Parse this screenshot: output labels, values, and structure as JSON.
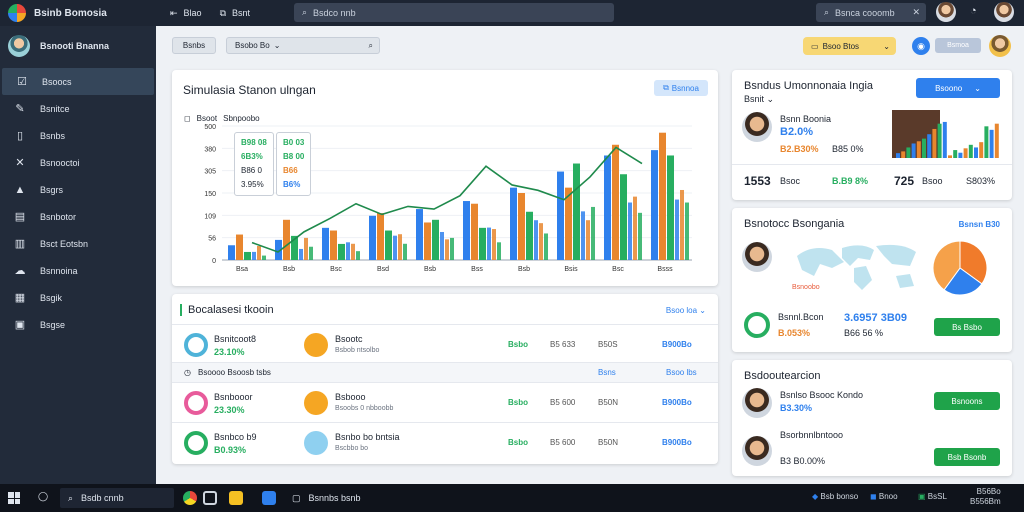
{
  "topbar": {
    "app_title": "Bsinb Bomosia",
    "nav1": "Blao",
    "nav2": "Bsnt",
    "search_placeholder": "Bsdco nnb",
    "search2_placeholder": "Bsnca cooomb"
  },
  "sidebar": {
    "user_name": "Bsnooti Bnanna",
    "items": [
      {
        "label": "Bsoocs",
        "icon": "edit-icon"
      },
      {
        "label": "Bsnitce",
        "icon": "edit-icon"
      },
      {
        "label": "Bsnbs",
        "icon": "document-icon"
      },
      {
        "label": "Bsnooctoi",
        "icon": "tools-icon"
      },
      {
        "label": "Bsgrs",
        "icon": "user-icon"
      },
      {
        "label": "Bsnbotor",
        "icon": "file-icon"
      },
      {
        "label": "Bsct Eotsbn",
        "icon": "file-icon"
      },
      {
        "label": "Bsnnoina",
        "icon": "cloud-icon"
      },
      {
        "label": "Bsgik",
        "icon": "chart-icon"
      },
      {
        "label": "Bsgse",
        "icon": "archive-icon"
      }
    ]
  },
  "header": {
    "crumb": "Bsnbs",
    "filter": "Bsobo Bo",
    "pill": "Bsoo Btos",
    "box": "Bsmoa"
  },
  "chart_card": {
    "title": "Simulasia Stanon ulngan",
    "button": "Bsnnoa",
    "legend1": "Bsoot",
    "legend2": "Sbnpoobo",
    "tooltip1": [
      "B98 08",
      "6B3%",
      "B86 0",
      "3.95%"
    ],
    "tooltip2": [
      "B0 03",
      "B8 00",
      "B66",
      "B6%"
    ]
  },
  "chart_data": {
    "type": "bar",
    "yticks": [
      "0",
      "56",
      "109",
      "150",
      "305",
      "380",
      "500"
    ],
    "categories": [
      "Bsa",
      "Bsb",
      "Bsc",
      "Bsd",
      "Bsb",
      "Bss",
      "Bsb",
      "Bsis",
      "Bsc",
      "Bsss"
    ],
    "series": [
      {
        "color": "#2f80ed",
        "values": [
          55,
          75,
          120,
          165,
          190,
          220,
          270,
          330,
          390,
          410
        ]
      },
      {
        "color": "#e8862e",
        "values": [
          95,
          150,
          110,
          175,
          140,
          210,
          250,
          270,
          430,
          475
        ]
      },
      {
        "color": "#27ae60",
        "values": [
          30,
          90,
          60,
          110,
          150,
          120,
          180,
          360,
          320,
          390
        ]
      }
    ],
    "line": [
      65,
      30,
      105,
      155,
      210,
      170,
      200,
      190,
      240,
      350,
      280,
      260,
      225,
      310,
      420,
      360
    ]
  },
  "table": {
    "title": "Bocalasesi tkooin",
    "link": "Bsoo loa",
    "rows": [
      {
        "n1": "Bsnitcoot8",
        "v1": "23.10%",
        "n2": "Bsootc",
        "s2": "Bsbob ntsolbo",
        "c1": "Bsbo",
        "c2": "B5 633",
        "c3": "B50S",
        "c4": "B900Bo",
        "ringA": "#4fb3d9",
        "ringB": "#f5a623"
      },
      {
        "n1": "Bsnbooor",
        "v1": "23.30%",
        "n2": "Bsbooo",
        "s2": "Bsoobs 0 nbboobb",
        "c1": "Bsbo",
        "c2": "B5 600",
        "c3": "B50N",
        "c4": "B900Bo",
        "ringA": "#e85b9b",
        "ringB": "#f5a623"
      },
      {
        "n1": "Bsnbco b9",
        "v1": "B0.93%",
        "n2": "Bsnbo bo bntsia",
        "s2": "Bscbbo bo",
        "c1": "Bsbo",
        "c2": "B5 600",
        "c3": "B50N",
        "c4": "B900Bo",
        "ringA": "#27ae60",
        "ringB": "#8fd0f0"
      }
    ],
    "subhead": {
      "left": "Bsoooo Bsoosb tsbs",
      "mid": "Bsns",
      "right": "Bsoo lbs"
    }
  },
  "card1": {
    "title": "Bsndus Umonnonaia Ingia",
    "sub": "Bsnit",
    "button": "Bsoono",
    "name": "Bsnn Boonia",
    "pct": "B2.0%",
    "metric1": "B2.B30%",
    "metric2": "B85 0%",
    "big1": "1553",
    "big1_label": "Bsoc",
    "green": "B.B9 8%",
    "big2": "725",
    "big2_label": "Bsoo",
    "big3": "S803%"
  },
  "card2": {
    "title": "Bsnotocc Bsongania",
    "sub_right": "Bsnsn B30",
    "link": "Bsnoobo",
    "name": "Bsnnl.Bcon",
    "vals": "3.6957 3B09",
    "pct": "B.053%",
    "pct2": "B66 56 %",
    "button": "Bs Bsbo"
  },
  "card3": {
    "title": "Bsdooutearcion",
    "p1_name": "Bsnlso Bsooc Kondo",
    "p1_pct": "B3.30%",
    "p1_button": "Bsnoons",
    "p2_name": "Bsorbnnlbntooo",
    "p2_pct": "B3 B0.00%",
    "p2_button": "Bsb Bsonb"
  },
  "taskbar": {
    "search": "Bsdb cnnb",
    "app": "Bsnnbs bsnb",
    "tray1": "Bsb bonso",
    "tray2": "Bnoo",
    "tray3": "BsSL",
    "time": "B56Bo",
    "date": "B556Bm"
  }
}
